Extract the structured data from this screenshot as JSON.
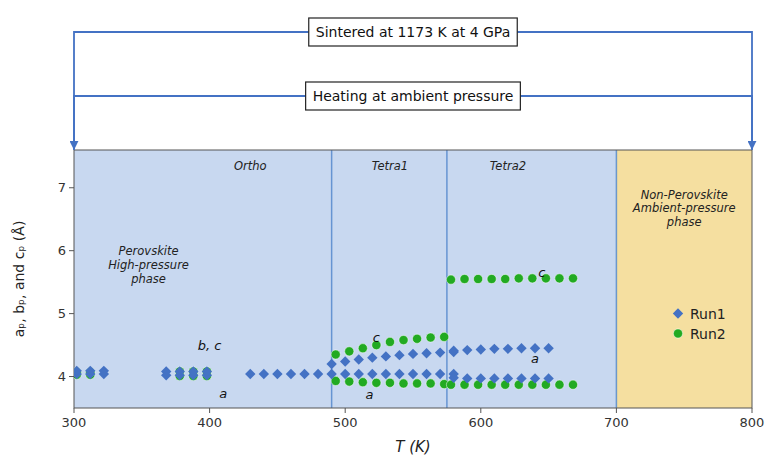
{
  "chart_data": {
    "type": "scatter",
    "xlabel": "T (K)",
    "ylabel": "aₚ, bₚ, and cₚ (Å)",
    "xlim": [
      300,
      800
    ],
    "ylim": [
      3.5,
      7.6
    ],
    "xticks": [
      300,
      400,
      500,
      600,
      700,
      800
    ],
    "yticks": [
      4,
      5,
      6,
      7
    ],
    "grid": false,
    "legend": "lower right",
    "regions": [
      {
        "from": 300,
        "to": 700,
        "color": "#c8d8f0"
      },
      {
        "from": 700,
        "to": 800,
        "color": "#f5dfa0"
      }
    ],
    "boundaries": [
      490,
      575,
      700
    ],
    "phase_labels": [
      {
        "text": "Perovskite\nHigh-pressure\nphase",
        "x": 355,
        "y": 6.1
      },
      {
        "text": "Ortho",
        "x": 430,
        "y": 7.45
      },
      {
        "text": "Tetra1",
        "x": 533,
        "y": 7.45
      },
      {
        "text": "Tetra2",
        "x": 620,
        "y": 7.45
      },
      {
        "text": "Non-Perovskite\nAmbient-pressure\nphase",
        "x": 750,
        "y": 7.0
      }
    ],
    "annotations": [
      {
        "text": "b, c",
        "x": 400,
        "y": 4.5
      },
      {
        "text": "a",
        "x": 410,
        "y": 3.73
      },
      {
        "text": "c",
        "x": 523,
        "y": 4.62
      },
      {
        "text": "a",
        "x": 518,
        "y": 3.72
      },
      {
        "text": "c",
        "x": 645,
        "y": 5.65
      },
      {
        "text": "a",
        "x": 640,
        "y": 4.28
      }
    ],
    "notes": [
      "Sintered at 1173 K at 4 GPa",
      "Heating at ambient pressure"
    ],
    "series": [
      {
        "name": "Run1",
        "color": "#4472c4",
        "marker": "diamond",
        "x": [
          302,
          312,
          322,
          302,
          312,
          322,
          368,
          378,
          388,
          398,
          368,
          378,
          388,
          398,
          430,
          440,
          450,
          460,
          470,
          480,
          490,
          500,
          510,
          520,
          530,
          540,
          550,
          560,
          570,
          580,
          490,
          500,
          510,
          520,
          530,
          540,
          550,
          560,
          570,
          580,
          580,
          590,
          600,
          610,
          620,
          630,
          640,
          650,
          580,
          590,
          600,
          610,
          620,
          630,
          640,
          650
        ],
        "values": [
          4.04,
          4.04,
          4.04,
          4.09,
          4.09,
          4.09,
          4.02,
          4.02,
          4.02,
          4.02,
          4.08,
          4.08,
          4.08,
          4.08,
          4.04,
          4.04,
          4.04,
          4.04,
          4.04,
          4.04,
          4.04,
          4.04,
          4.04,
          4.04,
          4.04,
          4.04,
          4.04,
          4.04,
          4.04,
          4.04,
          4.2,
          4.24,
          4.27,
          4.3,
          4.32,
          4.34,
          4.36,
          4.37,
          4.38,
          4.39,
          3.98,
          3.97,
          3.97,
          3.97,
          3.97,
          3.97,
          3.97,
          3.97,
          4.41,
          4.42,
          4.43,
          4.44,
          4.44,
          4.45,
          4.45,
          4.45
        ]
      },
      {
        "name": "Run2",
        "color": "#22aa22",
        "marker": "circle",
        "x": [
          302,
          312,
          302,
          312,
          378,
          388,
          398,
          378,
          388,
          398,
          493,
          503,
          513,
          523,
          533,
          543,
          553,
          563,
          573,
          493,
          503,
          513,
          523,
          533,
          543,
          553,
          563,
          573,
          578,
          588,
          598,
          608,
          618,
          628,
          638,
          648,
          658,
          668,
          578,
          588,
          598,
          608,
          618,
          628,
          638,
          648,
          658,
          668
        ],
        "values": [
          4.03,
          4.03,
          4.07,
          4.07,
          4.01,
          4.01,
          4.01,
          4.08,
          4.08,
          4.08,
          3.93,
          3.92,
          3.91,
          3.9,
          3.9,
          3.89,
          3.89,
          3.89,
          3.88,
          4.35,
          4.4,
          4.45,
          4.5,
          4.55,
          4.58,
          4.6,
          4.62,
          4.63,
          3.87,
          3.87,
          3.87,
          3.87,
          3.87,
          3.87,
          3.87,
          3.87,
          3.87,
          3.87,
          5.54,
          5.55,
          5.55,
          5.55,
          5.55,
          5.56,
          5.56,
          5.56,
          5.56,
          5.56
        ]
      }
    ]
  }
}
